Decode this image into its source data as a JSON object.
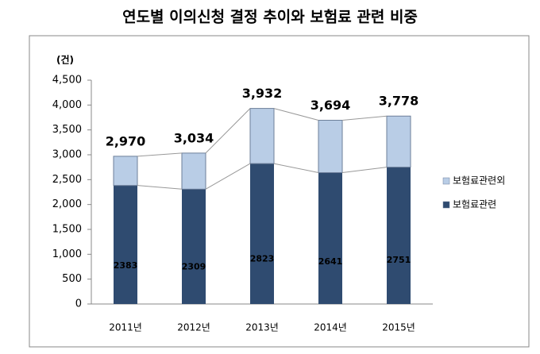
{
  "chart_data": {
    "type": "stacked_bar",
    "title": "연도별 이의신청 결정 추이와 보험료 관련 비중",
    "y_unit": "(건)",
    "categories": [
      "2011년",
      "2012년",
      "2013년",
      "2014년",
      "2015년"
    ],
    "series": [
      {
        "name": "보험료관련",
        "color": "#2f4b70",
        "values": [
          2383,
          2309,
          2823,
          2641,
          2751
        ]
      },
      {
        "name": "보험료관련외",
        "color": "#b9cde6",
        "values": [
          587,
          725,
          1109,
          1053,
          1027
        ]
      }
    ],
    "total_labels": [
      "2,970",
      "3,034",
      "3,932",
      "3,694",
      "3,778"
    ],
    "ylim": [
      0,
      4500
    ],
    "yticks": [
      0,
      500,
      {
        "value": 1000,
        "label": "1,000"
      },
      {
        "value": 1500,
        "label": "1,500"
      },
      {
        "value": 2000,
        "label": "2,000"
      },
      {
        "value": 2500,
        "label": "2,500"
      },
      {
        "value": 3000,
        "label": "3,000"
      },
      {
        "value": 3500,
        "label": "3,500"
      },
      {
        "value": 4000,
        "label": "4,000"
      },
      {
        "value": 4500,
        "label": "4,500"
      }
    ],
    "legend": "right",
    "grid": false
  }
}
